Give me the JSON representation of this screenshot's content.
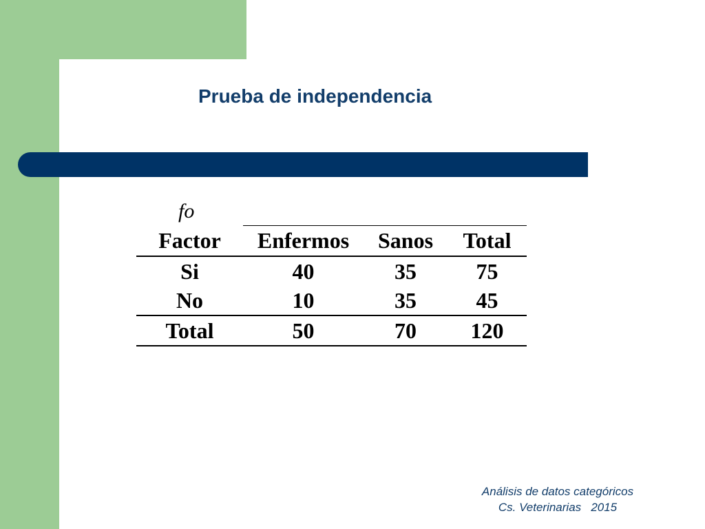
{
  "slide": {
    "title": "Prueba de independencia",
    "table_caption": "fo"
  },
  "table": {
    "headers": [
      "Factor",
      "Enfermos",
      "Sanos",
      "Total"
    ],
    "rows": [
      [
        "Si",
        "40",
        "35",
        "75"
      ],
      [
        "No",
        "10",
        "35",
        "45"
      ]
    ],
    "total_row": [
      "Total",
      "50",
      "70",
      "120"
    ]
  },
  "footer": {
    "line1": "Análisis de datos categóricos",
    "line2": "Cs. Veterinarias   2015"
  },
  "colors": {
    "accent_green": "#9ccc95",
    "title_blue": "#123d6a",
    "bar_navy": "#003366"
  }
}
